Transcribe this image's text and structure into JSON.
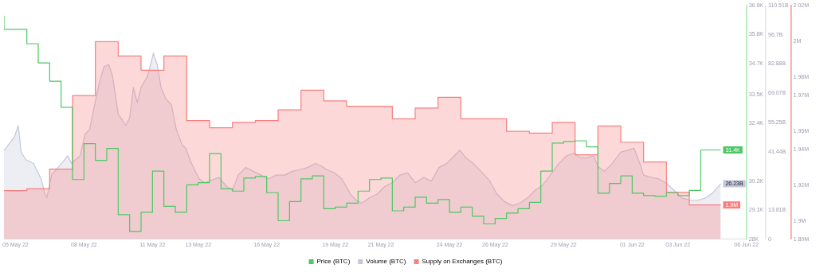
{
  "chart_data": {
    "type": "line",
    "legend": "bottom",
    "xlim": [
      "--05-04T12:00",
      "--06-06T00:00"
    ],
    "xticks": [
      {
        "value": "--05-05",
        "label": "05 May 22"
      },
      {
        "value": "--05-08",
        "label": "08 May 22"
      },
      {
        "value": "--05-11",
        "label": "11 May 22"
      },
      {
        "value": "--05-13",
        "label": "13 May 22"
      },
      {
        "value": "--05-16",
        "label": "16 May 22"
      },
      {
        "value": "--05-19",
        "label": "19 May 22"
      },
      {
        "value": "--05-21",
        "label": "21 May 22"
      },
      {
        "value": "--05-24",
        "label": "24 May 22"
      },
      {
        "value": "--05-26",
        "label": "26 May 22"
      },
      {
        "value": "--05-29",
        "label": "29 May 22"
      },
      {
        "value": "--06-01",
        "label": "01 Jun 22"
      },
      {
        "value": "--06-03",
        "label": "03 Jun 22"
      },
      {
        "value": "--06-06",
        "label": "06 Jun 22"
      }
    ],
    "ylim": [
      28000,
      36900
    ],
    "yticks": [
      {
        "value": 28000,
        "label": "28K"
      },
      {
        "value": 29100,
        "label": "29.1K"
      },
      {
        "value": 30200,
        "label": "30.2K"
      },
      {
        "value": 32400,
        "label": "32.4K"
      },
      {
        "value": 33500,
        "label": "33.5K"
      },
      {
        "value": 34700,
        "label": "34.7K"
      },
      {
        "value": 35800,
        "label": "35.8K"
      },
      {
        "value": 36900,
        "label": "36.9K"
      }
    ],
    "y2lim": [
      0,
      110.51
    ],
    "y2ticks": [
      0,
      {
        "value": 13.81,
        "label": "13.81B"
      },
      {
        "value": 41.44,
        "label": "41.44B"
      },
      {
        "value": 55.25,
        "label": "55.25B"
      },
      {
        "value": 69.07,
        "label": "69.07B"
      },
      {
        "value": 82.88,
        "label": "82.88B"
      },
      {
        "value": 96.7,
        "label": "96.7B"
      },
      {
        "value": 110.51,
        "label": "110.51B"
      }
    ],
    "y3lim": [
      1.89,
      2.02
    ],
    "y3ticks": [
      {
        "value": 1.89,
        "label": "1.89M"
      },
      {
        "value": 1.9,
        "label": "1.9M"
      },
      {
        "value": 1.92,
        "label": "1.92M"
      },
      {
        "value": 1.94,
        "label": "1.94M"
      },
      {
        "value": 1.95,
        "label": "1.95M"
      },
      {
        "value": 1.97,
        "label": "1.97M"
      },
      {
        "value": 1.98,
        "label": "1.98M"
      },
      {
        "value": 2.0,
        "label": "2M"
      },
      {
        "value": 2.02,
        "label": "2.02M"
      }
    ],
    "series": [
      {
        "name": "Price (BTC)",
        "type": "step",
        "color": "#4cc764",
        "x": [
          "--05-04T12:00",
          "--05-05T00:00",
          "--05-05T12:00",
          "--05-06T00:00",
          "--05-06T12:00",
          "--05-07T00:00",
          "--05-07T12:00",
          "--05-08T00:00",
          "--05-08T12:00",
          "--05-09T00:00",
          "--05-09T12:00",
          "--05-10T00:00",
          "--05-10T12:00",
          "--05-11T00:00",
          "--05-11T12:00",
          "--05-12T00:00",
          "--05-12T12:00",
          "--05-13T00:00",
          "--05-13T12:00",
          "--05-14T00:00",
          "--05-14T12:00",
          "--05-15T00:00",
          "--05-15T12:00",
          "--05-16T00:00",
          "--05-16T12:00",
          "--05-17T00:00",
          "--05-17T12:00",
          "--05-18T00:00",
          "--05-18T12:00",
          "--05-19T00:00",
          "--05-19T12:00",
          "--05-20T00:00",
          "--05-20T12:00",
          "--05-21T00:00",
          "--05-21T12:00",
          "--05-22T00:00",
          "--05-22T12:00",
          "--05-23T00:00",
          "--05-23T12:00",
          "--05-24T00:00",
          "--05-24T12:00",
          "--05-25T00:00",
          "--05-25T12:00",
          "--05-26T00:00",
          "--05-26T12:00",
          "--05-27T00:00",
          "--05-27T12:00",
          "--05-28T00:00",
          "--05-28T12:00",
          "--05-29T00:00",
          "--05-29T12:00",
          "--05-30T00:00",
          "--05-30T12:00",
          "--05-31T00:00",
          "--05-31T12:00",
          "--06-01T00:00",
          "--06-01T12:00",
          "--06-02T00:00",
          "--06-02T12:00",
          "--06-03T00:00",
          "--06-03T12:00",
          "--06-04T00:00",
          "--06-04T12:00",
          "--06-04T21:00"
        ],
        "values": [
          36520,
          36000,
          36000,
          35450,
          34720,
          34020,
          33030,
          30270,
          31640,
          31000,
          31460,
          28930,
          28290,
          29020,
          30590,
          29250,
          29020,
          30070,
          30150,
          31260,
          29920,
          29830,
          30330,
          30390,
          29770,
          28700,
          29430,
          30300,
          30410,
          29160,
          29220,
          29370,
          29830,
          30270,
          30330,
          29080,
          29220,
          29600,
          29370,
          29510,
          29020,
          29220,
          28870,
          28580,
          28790,
          28990,
          29160,
          29400,
          30590,
          31660,
          31720,
          31750,
          31520,
          29750,
          30120,
          30410,
          29750,
          29660,
          29630,
          29770,
          29660,
          29860,
          31400,
          31400
        ],
        "value_labels": [
          null,
          null,
          null,
          null,
          null,
          null,
          null,
          null,
          null,
          null,
          null,
          null,
          null,
          null,
          null,
          null,
          null,
          null,
          null,
          null,
          null,
          null,
          null,
          null,
          null,
          null,
          null,
          null,
          null,
          null,
          null,
          null,
          null,
          null,
          null,
          null,
          null,
          null,
          null,
          null,
          null,
          null,
          null,
          null,
          null,
          null,
          null,
          null,
          null,
          null,
          null,
          null,
          null,
          null,
          null,
          null,
          null,
          null,
          null,
          null,
          null,
          null,
          null,
          "31.4K"
        ]
      },
      {
        "name": "Volume (BTC)",
        "type": "area",
        "axis": "y2",
        "color": "#c4c6dc",
        "x": [
          "--05-04T12:00",
          "--05-04T23:00",
          "--05-05T03:00",
          "--05-05T06:00",
          "--05-05T11:00",
          "--05-05T19:00",
          "--05-06T03:00",
          "--05-06T07:00",
          "--05-06T09:00",
          "--05-06T14:00",
          "--05-06T23:00",
          "--05-07T07:00",
          "--05-07T11:00",
          "--05-07T15:00",
          "--05-07T20:00",
          "--05-08T01:00",
          "--05-08T06:00",
          "--05-08T10:00",
          "--05-08T16:00",
          "--05-08T21:00",
          "--05-09T02:00",
          "--05-09T06:00",
          "--05-09T12:00",
          "--05-09T20:00",
          "--05-10T00:00",
          "--05-10T04:00",
          "--05-10T08:00",
          "--05-10T12:00",
          "--05-10T19:00",
          "--05-11T01:00",
          "--05-11T02:00",
          "--05-11T05:00",
          "--05-11T09:00",
          "--05-11T14:00",
          "--05-11T20:00",
          "--05-12T01:00",
          "--05-12T07:00",
          "--05-12T11:00",
          "--05-12T17:00",
          "--05-13T01:00",
          "--05-13T07:00",
          "--05-13T13:00",
          "--05-13T22:00",
          "--05-14T06:00",
          "--05-14T12:00",
          "--05-14T18:00",
          "--05-15T02:00",
          "--05-15T10:00",
          "--05-15T18:00",
          "--05-16T02:00",
          "--05-16T10:00",
          "--05-16T19:00",
          "--05-17T03:00",
          "--05-17T11:00",
          "--05-17T19:00",
          "--05-18T03:00",
          "--05-18T09:00",
          "--05-18T15:00",
          "--05-18T23:00",
          "--05-19T07:00",
          "--05-19T16:00",
          "--05-19T22:00",
          "--05-20T04:00",
          "--05-20T12:00",
          "--05-20T20:00",
          "--05-21T04:00",
          "--05-21T12:00",
          "--05-21T20:00",
          "--05-22T04:00",
          "--05-22T12:00",
          "--05-22T21:00",
          "--05-23T05:00",
          "--05-23T13:00",
          "--05-23T21:00",
          "--05-24T05:00",
          "--05-24T11:00",
          "--05-24T17:00",
          "--05-25T01:00",
          "--05-25T09:00",
          "--05-25T18:00",
          "--05-26T02:00",
          "--05-26T10:00",
          "--05-26T18:00",
          "--05-27T02:00",
          "--05-27T10:00",
          "--05-27T18:00",
          "--05-28T02:00",
          "--05-28T10:00",
          "--05-28T19:00",
          "--05-29T03:00",
          "--05-29T11:00",
          "--05-29T17:00",
          "--05-29T23:00",
          "--05-30T07:00",
          "--05-30T13:00",
          "--05-30T19:00",
          "--05-31T03:00",
          "--05-31T12:00",
          "--05-31T20:00",
          "--06-01T02:00",
          "--06-01T08:00",
          "--06-01T12:00",
          "--06-01T20:00",
          "--06-02T04:00",
          "--06-02T12:00",
          "--06-02T20:00",
          "--06-03T04:00",
          "--06-03T13:00",
          "--06-03T21:00",
          "--06-04T05:00",
          "--06-04T13:00",
          "--06-04T21:00"
        ],
        "values": [
          41.9,
          48.4,
          53.8,
          41.2,
          37.6,
          35.8,
          28.5,
          21.3,
          19.5,
          30.3,
          35.0,
          39.4,
          35.8,
          37.6,
          39.4,
          49.5,
          52.0,
          61.0,
          73.7,
          81.6,
          82.7,
          77.3,
          59.2,
          53.8,
          57.4,
          71.8,
          64.6,
          71.8,
          77.3,
          88.1,
          86.3,
          82.7,
          71.8,
          66.4,
          63.5,
          52.0,
          44.8,
          43.0,
          35.8,
          28.5,
          26.7,
          27.8,
          29.2,
          24.9,
          23.1,
          30.3,
          33.9,
          32.1,
          30.3,
          28.5,
          30.3,
          30.3,
          32.1,
          32.9,
          33.9,
          35.8,
          34.7,
          32.9,
          31.4,
          28.5,
          21.3,
          18.4,
          17.0,
          19.5,
          21.3,
          24.9,
          26.7,
          30.3,
          31.4,
          26.7,
          29.2,
          27.4,
          33.9,
          35.8,
          39.4,
          42.2,
          38.6,
          35.8,
          32.1,
          27.8,
          21.3,
          17.7,
          15.9,
          17.0,
          19.5,
          23.1,
          25.6,
          30.3,
          35.8,
          39.4,
          40.8,
          38.6,
          38.3,
          39.4,
          33.9,
          32.1,
          35.8,
          41.2,
          42.2,
          43.0,
          35.8,
          30.3,
          29.2,
          28.5,
          26.4,
          23.1,
          19.5,
          18.4,
          18.4,
          19.5,
          22.0,
          26.23
        ],
        "value_labels": [
          null,
          null,
          null,
          null,
          null,
          null,
          null,
          null,
          null,
          null,
          null,
          null,
          null,
          null,
          null,
          null,
          null,
          null,
          null,
          null,
          null,
          null,
          null,
          null,
          null,
          null,
          null,
          null,
          null,
          null,
          null,
          null,
          null,
          null,
          null,
          null,
          null,
          null,
          null,
          null,
          null,
          null,
          null,
          null,
          null,
          null,
          null,
          null,
          null,
          null,
          null,
          null,
          null,
          null,
          null,
          null,
          null,
          null,
          null,
          null,
          null,
          null,
          null,
          null,
          null,
          null,
          null,
          null,
          null,
          null,
          null,
          null,
          null,
          null,
          null,
          null,
          null,
          null,
          null,
          null,
          null,
          null,
          null,
          null,
          null,
          null,
          null,
          null,
          null,
          null,
          null,
          null,
          null,
          null,
          null,
          null,
          null,
          null,
          null,
          null,
          null,
          null,
          null,
          null,
          null,
          null,
          null,
          null,
          null,
          null,
          null,
          "26.23B"
        ]
      },
      {
        "name": "Supply on Exchanges (BTC)",
        "type": "area",
        "axis": "y3",
        "color": "#f77f7f",
        "x": [
          "--05-04T12:00",
          "--05-05T12:00",
          "--05-05T12:00",
          "--05-06T12:00",
          "--05-06T12:00",
          "--05-07T12:00",
          "--05-07T12:00",
          "--05-08T12:00",
          "--05-08T12:00",
          "--05-09T12:00",
          "--05-09T12:00",
          "--05-10T12:00",
          "--05-10T12:00",
          "--05-11T12:00",
          "--05-11T12:00",
          "--05-12T12:00",
          "--05-12T12:00",
          "--05-13T12:00",
          "--05-13T12:00",
          "--05-14T12:00",
          "--05-14T12:00",
          "--05-15T12:00",
          "--05-15T12:00",
          "--05-16T12:00",
          "--05-16T12:00",
          "--05-17T12:00",
          "--05-17T12:00",
          "--05-18T12:00",
          "--05-18T12:00",
          "--05-19T12:00",
          "--05-19T12:00",
          "--05-21T12:00",
          "--05-21T12:00",
          "--05-22T12:00",
          "--05-22T12:00",
          "--05-23T12:00",
          "--05-23T12:00",
          "--05-24T12:00",
          "--05-24T12:00",
          "--05-26T12:00",
          "--05-26T12:00",
          "--05-27T12:00",
          "--05-27T12:00",
          "--05-28T12:00",
          "--05-28T12:00",
          "--05-29T12:00",
          "--05-29T12:00",
          "--05-30T12:00",
          "--05-30T12:00",
          "--05-31T12:00",
          "--05-31T12:00",
          "--06-01T12:00",
          "--06-01T12:00",
          "--06-02T12:00",
          "--06-02T12:00",
          "--06-03T12:00",
          "--06-03T12:00",
          "--06-04T21:00"
        ],
        "values": [
          1.917,
          1.917,
          1.918,
          1.918,
          1.929,
          1.929,
          1.97,
          1.97,
          2.0,
          2.0,
          1.992,
          1.992,
          1.984,
          1.984,
          1.992,
          1.992,
          1.956,
          1.956,
          1.952,
          1.952,
          1.955,
          1.955,
          1.956,
          1.956,
          1.962,
          1.962,
          1.973,
          1.973,
          1.967,
          1.967,
          1.964,
          1.964,
          1.957,
          1.957,
          1.963,
          1.963,
          1.969,
          1.969,
          1.957,
          1.957,
          1.95,
          1.95,
          1.949,
          1.949,
          1.955,
          1.955,
          1.937,
          1.937,
          1.953,
          1.953,
          1.944,
          1.944,
          1.933,
          1.933,
          1.916,
          1.916,
          1.909,
          1.909
        ],
        "value_labels": [
          null,
          null,
          null,
          null,
          null,
          null,
          null,
          null,
          null,
          null,
          null,
          null,
          null,
          null,
          null,
          null,
          null,
          null,
          null,
          null,
          null,
          null,
          null,
          null,
          null,
          null,
          null,
          null,
          null,
          null,
          null,
          null,
          null,
          null,
          null,
          null,
          null,
          null,
          null,
          null,
          null,
          null,
          null,
          null,
          null,
          null,
          null,
          null,
          null,
          null,
          null,
          null,
          null,
          null,
          null,
          null,
          null,
          "1.9M"
        ]
      }
    ]
  }
}
